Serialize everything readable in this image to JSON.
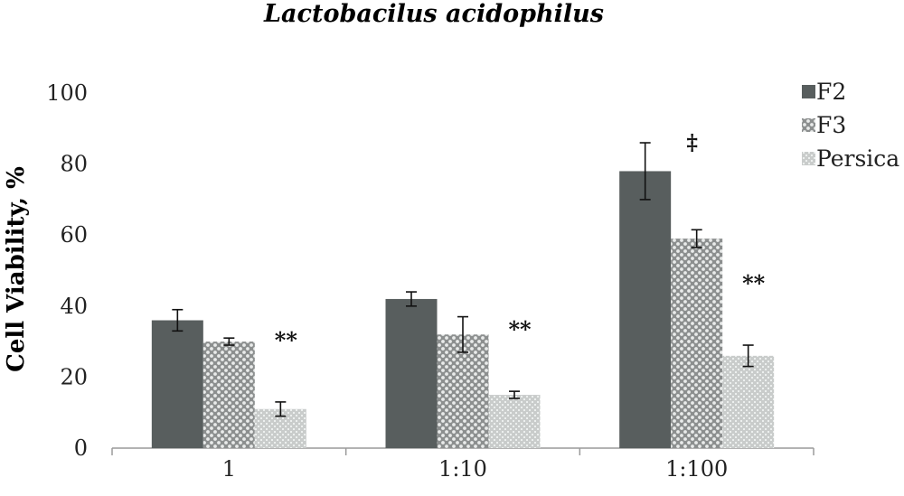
{
  "chart_data": {
    "type": "bar",
    "title": "Lactobacilus acidophilus",
    "xlabel": "",
    "ylabel": "Cell Viability, %",
    "ylim": [
      0,
      100
    ],
    "yticks": [
      "0",
      "20",
      "40",
      "60",
      "80",
      "100"
    ],
    "categories": [
      "1",
      "1:10",
      "1:100"
    ],
    "series": [
      {
        "name": "F2",
        "values": [
          36,
          42,
          78
        ],
        "errors": [
          3,
          2,
          8
        ],
        "color": "#585e5e",
        "pattern": "solid"
      },
      {
        "name": "F3",
        "values": [
          30,
          32,
          59
        ],
        "errors": [
          1,
          5,
          2.5
        ],
        "color": "#9a9a9a",
        "pattern": "dots"
      },
      {
        "name": "Persica",
        "values": [
          11,
          15,
          26
        ],
        "errors": [
          2,
          1,
          3
        ],
        "color": "#c8ccca",
        "pattern": "speckle"
      }
    ],
    "grid": false,
    "legend_position": "top-right",
    "annotations": [
      {
        "category": "1",
        "series": "Persica",
        "text": "**"
      },
      {
        "category": "1:10",
        "series": "Persica",
        "text": "**"
      },
      {
        "category": "1:100",
        "series": "Persica",
        "text": "**"
      },
      {
        "category": "1:100",
        "series": "F2",
        "text": "‡"
      }
    ]
  }
}
